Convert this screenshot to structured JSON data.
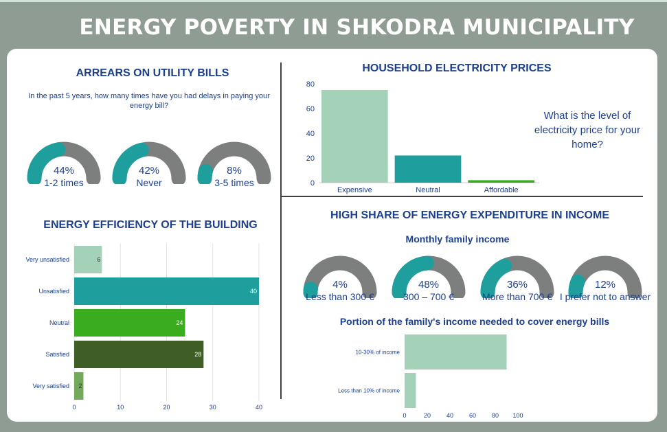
{
  "title": "ENERGY POVERTY IN SHKODRA MUNICIPALITY",
  "arrears": {
    "title": "ARREARS ON UTILITY BILLS",
    "question": "In the past 5 years, how many times have you had delays in paying your energy bill?",
    "gauges": [
      {
        "pct_text": "44%",
        "value": 44,
        "label": "1-2 times"
      },
      {
        "pct_text": "42%",
        "value": 42,
        "label": "Never"
      },
      {
        "pct_text": "8%",
        "value": 8,
        "label": "3-5 times"
      }
    ]
  },
  "prices": {
    "title": "HOUSEHOLD ELECTRICITY PRICES",
    "question": "What is the level of electricity price for your home?"
  },
  "expenditure": {
    "title": "HIGH SHARE OF ENERGY EXPENDITURE IN INCOME",
    "subtitle": "Monthly family income",
    "gauges": [
      {
        "pct_text": "4%",
        "value": 4,
        "label": "Less than 300 €"
      },
      {
        "pct_text": "48%",
        "value": 48,
        "label": "300 – 700 €"
      },
      {
        "pct_text": "36%",
        "value": 36,
        "label": "More than 700 €"
      },
      {
        "pct_text": "12%",
        "value": 12,
        "label": "I prefer not to answer"
      }
    ],
    "portion_title": "Portion of the family's income needed to cover energy bills"
  },
  "efficiency": {
    "title": "ENERGY EFFICIENCY OF THE BUILDING"
  },
  "colors": {
    "teal": "#1e9e9c",
    "gauge_grey": "#7d7f7e",
    "light_green": "#a3d2b9",
    "bright_green": "#39ad1f",
    "dark_green": "#3f5e25",
    "olive_green": "#74a95c",
    "navy": "#1c3f8e"
  },
  "chart_data": [
    {
      "type": "bar",
      "id": "electricity",
      "categories": [
        "Expensive",
        "Neutral",
        "Affordable"
      ],
      "values": [
        75,
        22,
        2
      ],
      "ylim": [
        0,
        80
      ],
      "yticks": [
        0,
        20,
        40,
        60,
        80
      ],
      "colors": [
        "#a3d2b9",
        "#1e9e9c",
        "#39ad1f"
      ]
    },
    {
      "type": "bar",
      "id": "efficiency",
      "orientation": "horizontal",
      "categories": [
        "Very unsatisfied",
        "Unsatisfied",
        "Neutral",
        "Satisfied",
        "Very satisfied"
      ],
      "values": [
        6,
        40,
        24,
        28,
        2
      ],
      "data_labels": [
        "6",
        "40",
        "24",
        "28",
        "2"
      ],
      "xlim": [
        0,
        40
      ],
      "xticks": [
        0,
        10,
        20,
        30,
        40
      ],
      "colors": [
        "#a3d2b9",
        "#1e9e9c",
        "#39ad1f",
        "#3f5e25",
        "#74a95c"
      ],
      "grid": true
    },
    {
      "type": "bar",
      "id": "portion",
      "orientation": "horizontal",
      "categories": [
        "10-30% of income",
        "Less than 10% of income"
      ],
      "values": [
        90,
        10
      ],
      "xlim": [
        0,
        100
      ],
      "xticks": [
        0,
        20,
        40,
        60,
        80,
        100
      ],
      "colors": [
        "#a3d2b9",
        "#a3d2b9"
      ]
    }
  ]
}
